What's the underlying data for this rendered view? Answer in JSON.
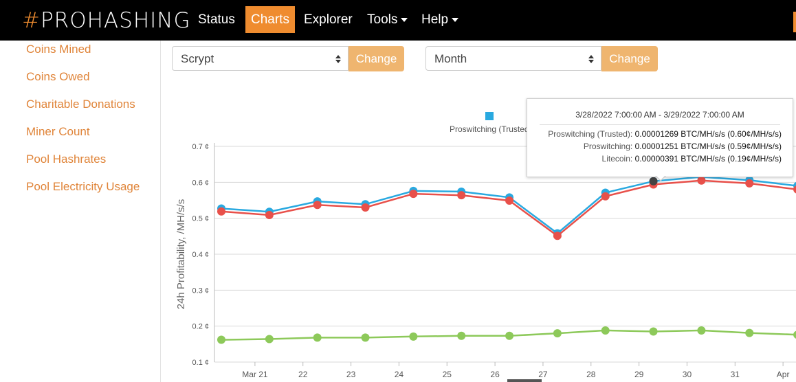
{
  "nav": {
    "logo_hash": "#",
    "logo_text": "PROHASHING",
    "items": [
      {
        "label": "Status"
      },
      {
        "label": "Charts"
      },
      {
        "label": "Explorer"
      },
      {
        "label": "Tools"
      },
      {
        "label": "Help"
      }
    ]
  },
  "sidebar": {
    "items": [
      {
        "label": "Coins Mined"
      },
      {
        "label": "Coins Owed"
      },
      {
        "label": "Charitable Donations"
      },
      {
        "label": "Miner Count"
      },
      {
        "label": "Pool Hashrates"
      },
      {
        "label": "Pool Electricity Usage"
      }
    ]
  },
  "controls": {
    "algorithm_value": "Scrypt",
    "algorithm_button": "Change",
    "period_value": "Month",
    "period_button": "Change"
  },
  "colors": {
    "accent": "#ef8c2f",
    "proswitching_trusted": "#29a9e0",
    "proswitching": "#e8504a",
    "litecoin": "#8dc95a"
  },
  "tooltip": {
    "header": "3/28/2022 7:00:00 AM - 3/29/2022 7:00:00 AM",
    "rows": [
      {
        "label": "Proswitching (Trusted):",
        "value": "0.00001269 BTC/MH/s/s (0.60¢/MH/s/s)"
      },
      {
        "label": "Proswitching:",
        "value": "0.00001251 BTC/MH/s/s (0.59¢/MH/s/s)"
      },
      {
        "label": "Litecoin:",
        "value": "0.00000391 BTC/MH/s/s (0.19¢/MH/s/s)"
      }
    ]
  },
  "chart_data": {
    "type": "line",
    "xlabel": "",
    "ylabel": "24h Profitability, /MH/s/s",
    "ylim": [
      0.1,
      0.7
    ],
    "yticks": [
      0.1,
      0.2,
      0.3,
      0.4,
      0.5,
      0.6,
      0.7
    ],
    "ytick_labels": [
      "0.1 ¢",
      "0.2 ¢",
      "0.3 ¢",
      "0.4 ¢",
      "0.5 ¢",
      "0.6 ¢",
      "0.7 ¢"
    ],
    "xtick_labels": [
      "Mar 21",
      "22",
      "23",
      "24",
      "25",
      "26",
      "27",
      "28",
      "29",
      "30",
      "31",
      "Apr"
    ],
    "grid": true,
    "legend_position": "top",
    "legend": [
      {
        "name": "Proswitching (Trusted)"
      }
    ],
    "x": [
      20.3,
      21.3,
      22.3,
      23.3,
      24.3,
      25.3,
      26.3,
      27.3,
      28.3,
      29.3,
      30.3,
      31.3,
      32.3
    ],
    "series": [
      {
        "name": "Proswitching (Trusted)",
        "color": "#29a9e0",
        "values": [
          0.527,
          0.518,
          0.547,
          0.539,
          0.576,
          0.574,
          0.558,
          0.458,
          0.571,
          0.603,
          0.615,
          0.606,
          0.59
        ]
      },
      {
        "name": "Proswitching",
        "color": "#e8504a",
        "values": [
          0.519,
          0.509,
          0.537,
          0.53,
          0.568,
          0.564,
          0.549,
          0.451,
          0.561,
          0.594,
          0.605,
          0.597,
          0.58
        ]
      },
      {
        "name": "Litecoin",
        "color": "#8dc95a",
        "values": [
          0.162,
          0.164,
          0.168,
          0.168,
          0.171,
          0.173,
          0.173,
          0.18,
          0.188,
          0.185,
          0.188,
          0.181,
          0.176
        ]
      }
    ]
  }
}
